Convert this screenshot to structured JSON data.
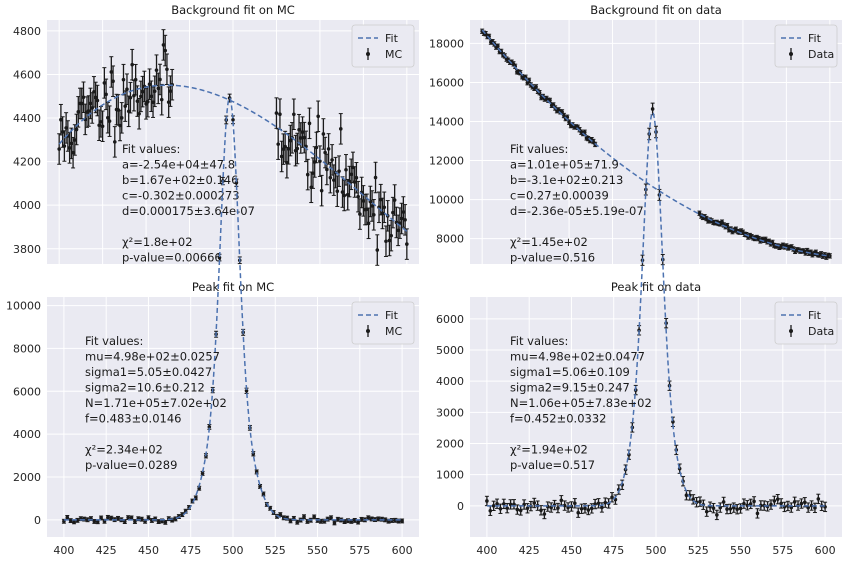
{
  "chart_data": [
    {
      "type": "scatter",
      "title": "Background fit on MC",
      "xlim": [
        393,
        607
      ],
      "ylim": [
        3730,
        4850
      ],
      "xticks": [],
      "yticks": [
        3800,
        4000,
        4200,
        4400,
        4600,
        4800
      ],
      "grid": true,
      "legend_position": "top-right",
      "legend": [
        "Fit",
        "MC"
      ],
      "annotation": [
        "Fit values:",
        "a=-2.54e+04±47.8",
        "b=1.67e+02±0.146",
        "c=-0.302±0.000273",
        "d=0.000175±3.64e-07",
        "",
        "χ²=1.8e+02",
        "p-value=0.00666"
      ],
      "fit": {
        "name": "Fit",
        "style": "dashed",
        "kind": "cubic",
        "coeffs": [
          -25400,
          167,
          -0.302,
          0.000175
        ],
        "x_range": [
          400,
          600
        ]
      },
      "points": {
        "name": "MC",
        "ranges": [
          [
            400,
            465
          ],
          [
            525,
            600
          ]
        ],
        "step": 1,
        "kind": "cubic_noisy",
        "yerr": 70,
        "noise": 80,
        "seed": 11
      }
    },
    {
      "type": "scatter",
      "title": "Background fit on data",
      "xlim": [
        393,
        607
      ],
      "ylim": [
        6700,
        19200
      ],
      "xticks": [],
      "yticks": [
        8000,
        10000,
        12000,
        14000,
        16000,
        18000
      ],
      "grid": true,
      "legend_position": "top-right",
      "legend": [
        "Fit",
        "Data"
      ],
      "annotation": [
        "Fit values:",
        "a=1.01e+05±71.9",
        "b=-3.1e+02±0.213",
        "c=0.27±0.00039",
        "d=-2.36e-05±5.19e-07",
        "",
        "χ²=1.45e+02",
        "p-value=0.516"
      ],
      "fit": {
        "name": "Fit",
        "style": "dashed",
        "kind": "cubic",
        "coeffs": [
          101000,
          -310,
          0.27,
          -2.36e-05
        ],
        "x_range": [
          400,
          600
        ]
      },
      "points": {
        "name": "Data",
        "ranges": [
          [
            400,
            465
          ],
          [
            525,
            600
          ]
        ],
        "step": 1,
        "kind": "cubic_noisy",
        "yerr": 110,
        "noise": 60,
        "seed": 23
      }
    },
    {
      "type": "scatter",
      "title": "Peak fit on MC",
      "xlim": [
        390,
        610
      ],
      "ylim": [
        -800,
        10400
      ],
      "xticks": [
        400,
        425,
        450,
        475,
        500,
        525,
        550,
        575,
        600
      ],
      "yticks": [
        0,
        2000,
        4000,
        6000,
        8000,
        10000
      ],
      "grid": true,
      "legend_position": "top-right",
      "legend": [
        "Fit",
        "MC"
      ],
      "annotation": [
        "Fit values:",
        "mu=4.98e+02±0.0257",
        "sigma1=5.05±0.0427",
        "sigma2=10.6±0.212",
        "N=1.71e+05±7.02e+02",
        "f=0.483±0.0146",
        "",
        "χ²=2.34e+02",
        "p-value=0.0289"
      ],
      "fit": {
        "name": "Fit",
        "style": "dashed",
        "kind": "double_gauss",
        "mu": 498,
        "sigma1": 5.05,
        "sigma2": 10.6,
        "N": 171000,
        "f": 0.483,
        "binw": 2,
        "x_range": [
          400,
          600
        ]
      },
      "points": {
        "name": "MC",
        "ranges": [
          [
            400,
            600
          ]
        ],
        "step": 2,
        "kind": "double_gauss_noisy",
        "yerr": 90,
        "noise": 60,
        "seed": 37
      }
    },
    {
      "type": "scatter",
      "title": "Peak fit on data",
      "xlim": [
        390,
        610
      ],
      "ylim": [
        -1000,
        6700
      ],
      "xticks": [
        400,
        425,
        450,
        475,
        500,
        525,
        550,
        575,
        600
      ],
      "yticks": [
        0,
        1000,
        2000,
        3000,
        4000,
        5000,
        6000
      ],
      "grid": true,
      "legend_position": "top-right",
      "legend": [
        "Fit",
        "Data"
      ],
      "annotation": [
        "Fit values:",
        "mu=4.98e+02±0.0477",
        "sigma1=5.06±0.109",
        "sigma2=9.15±0.247",
        "N=1.06e+05±7.83e+02",
        "f=0.452±0.0332",
        "",
        "χ²=1.94e+02",
        "p-value=0.517"
      ],
      "fit": {
        "name": "Fit",
        "style": "dashed",
        "kind": "double_gauss",
        "mu": 498,
        "sigma1": 5.06,
        "sigma2": 9.15,
        "N": 106000,
        "f": 0.452,
        "binw": 2,
        "x_range": [
          400,
          600
        ]
      },
      "points": {
        "name": "Data",
        "ranges": [
          [
            400,
            600
          ]
        ],
        "step": 2,
        "kind": "double_gauss_noisy",
        "yerr": 150,
        "noise": 110,
        "seed": 53
      }
    }
  ]
}
